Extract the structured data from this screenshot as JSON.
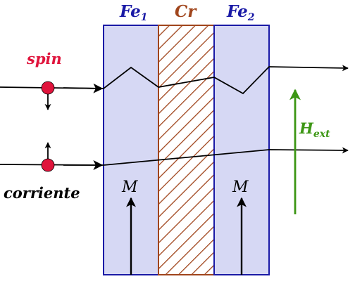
{
  "layers": [
    {
      "key": "fe1",
      "base": "Fe",
      "sub": "1",
      "color": "#1a1aa6"
    },
    {
      "key": "cr",
      "base": "Cr",
      "sub": "",
      "color": "#a0451c"
    },
    {
      "key": "fe2",
      "base": "Fe",
      "sub": "2",
      "color": "#1a1aa6"
    }
  ],
  "labels": {
    "spin": "spin",
    "current": "corriente",
    "field": "H",
    "field_sub": "ext",
    "magnetization": "M"
  },
  "colors": {
    "layer_fill": "#d6d8f4",
    "layer_border": "#1a1aa6",
    "hatch": "#a0451c",
    "spin": "#e0143c",
    "field": "#3c9614",
    "path": "#000000"
  }
}
